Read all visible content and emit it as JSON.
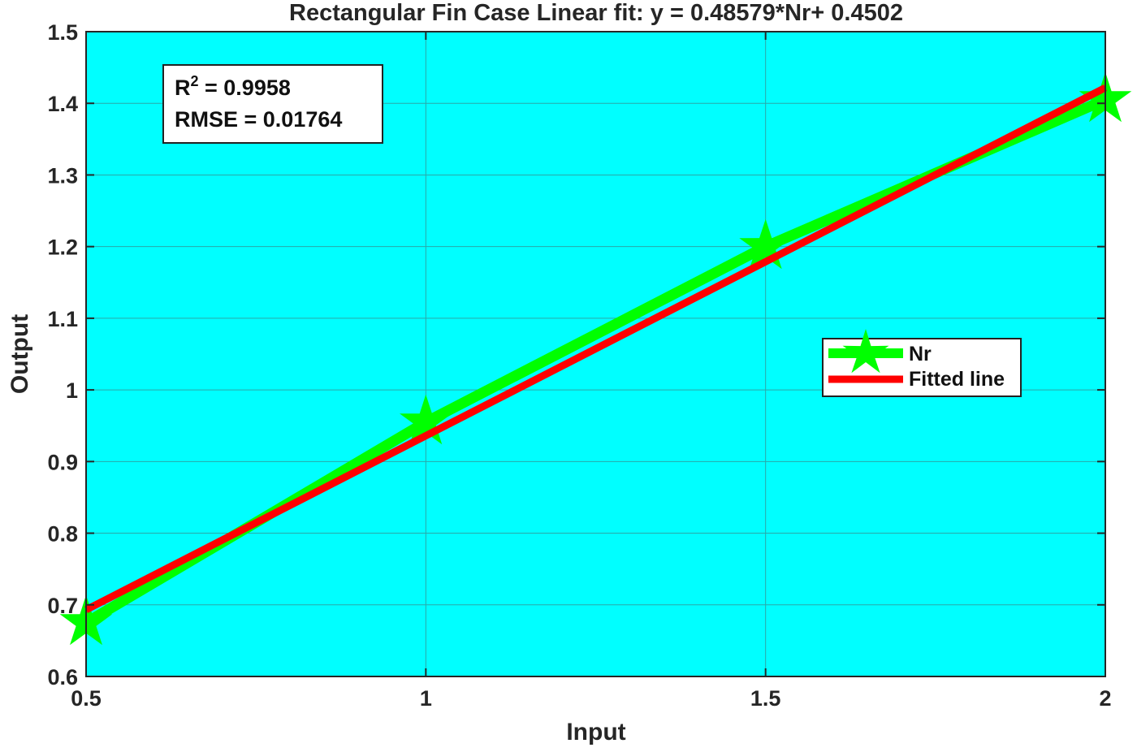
{
  "chart_data": {
    "type": "line",
    "title": "Rectangular Fin Case Linear fit: y = 0.48579*Nr+ 0.4502",
    "xlabel": "Input",
    "ylabel": "Output",
    "xlim": [
      0.5,
      2
    ],
    "ylim": [
      0.6,
      1.5
    ],
    "x_ticks": [
      "0.5",
      "1",
      "1.5",
      "2"
    ],
    "y_ticks": [
      "0.6",
      "0.7",
      "0.8",
      "0.9",
      "1",
      "1.1",
      "1.2",
      "1.3",
      "1.4",
      "1.5"
    ],
    "grid": true,
    "legend_position": "right",
    "series": [
      {
        "name": "Nr",
        "x": [
          0.5,
          1.0,
          1.5,
          2.0
        ],
        "y": [
          0.675,
          0.955,
          1.2,
          1.405
        ],
        "color": "#00ff00",
        "marker": "star"
      },
      {
        "name": "Fitted line",
        "x": [
          0.5,
          2.0
        ],
        "y": [
          0.6931,
          1.4218
        ],
        "color": "#ff0000",
        "marker": "none"
      }
    ],
    "annotation": {
      "r2_label": "R",
      "r2_sup": "2",
      "r2_value": " =  0.9958",
      "rmse_text": "RMSE  =  0.01764"
    },
    "colors": {
      "plot_background": "#00ffff",
      "grid": "#2aa8a8",
      "axis": "#262626"
    }
  }
}
